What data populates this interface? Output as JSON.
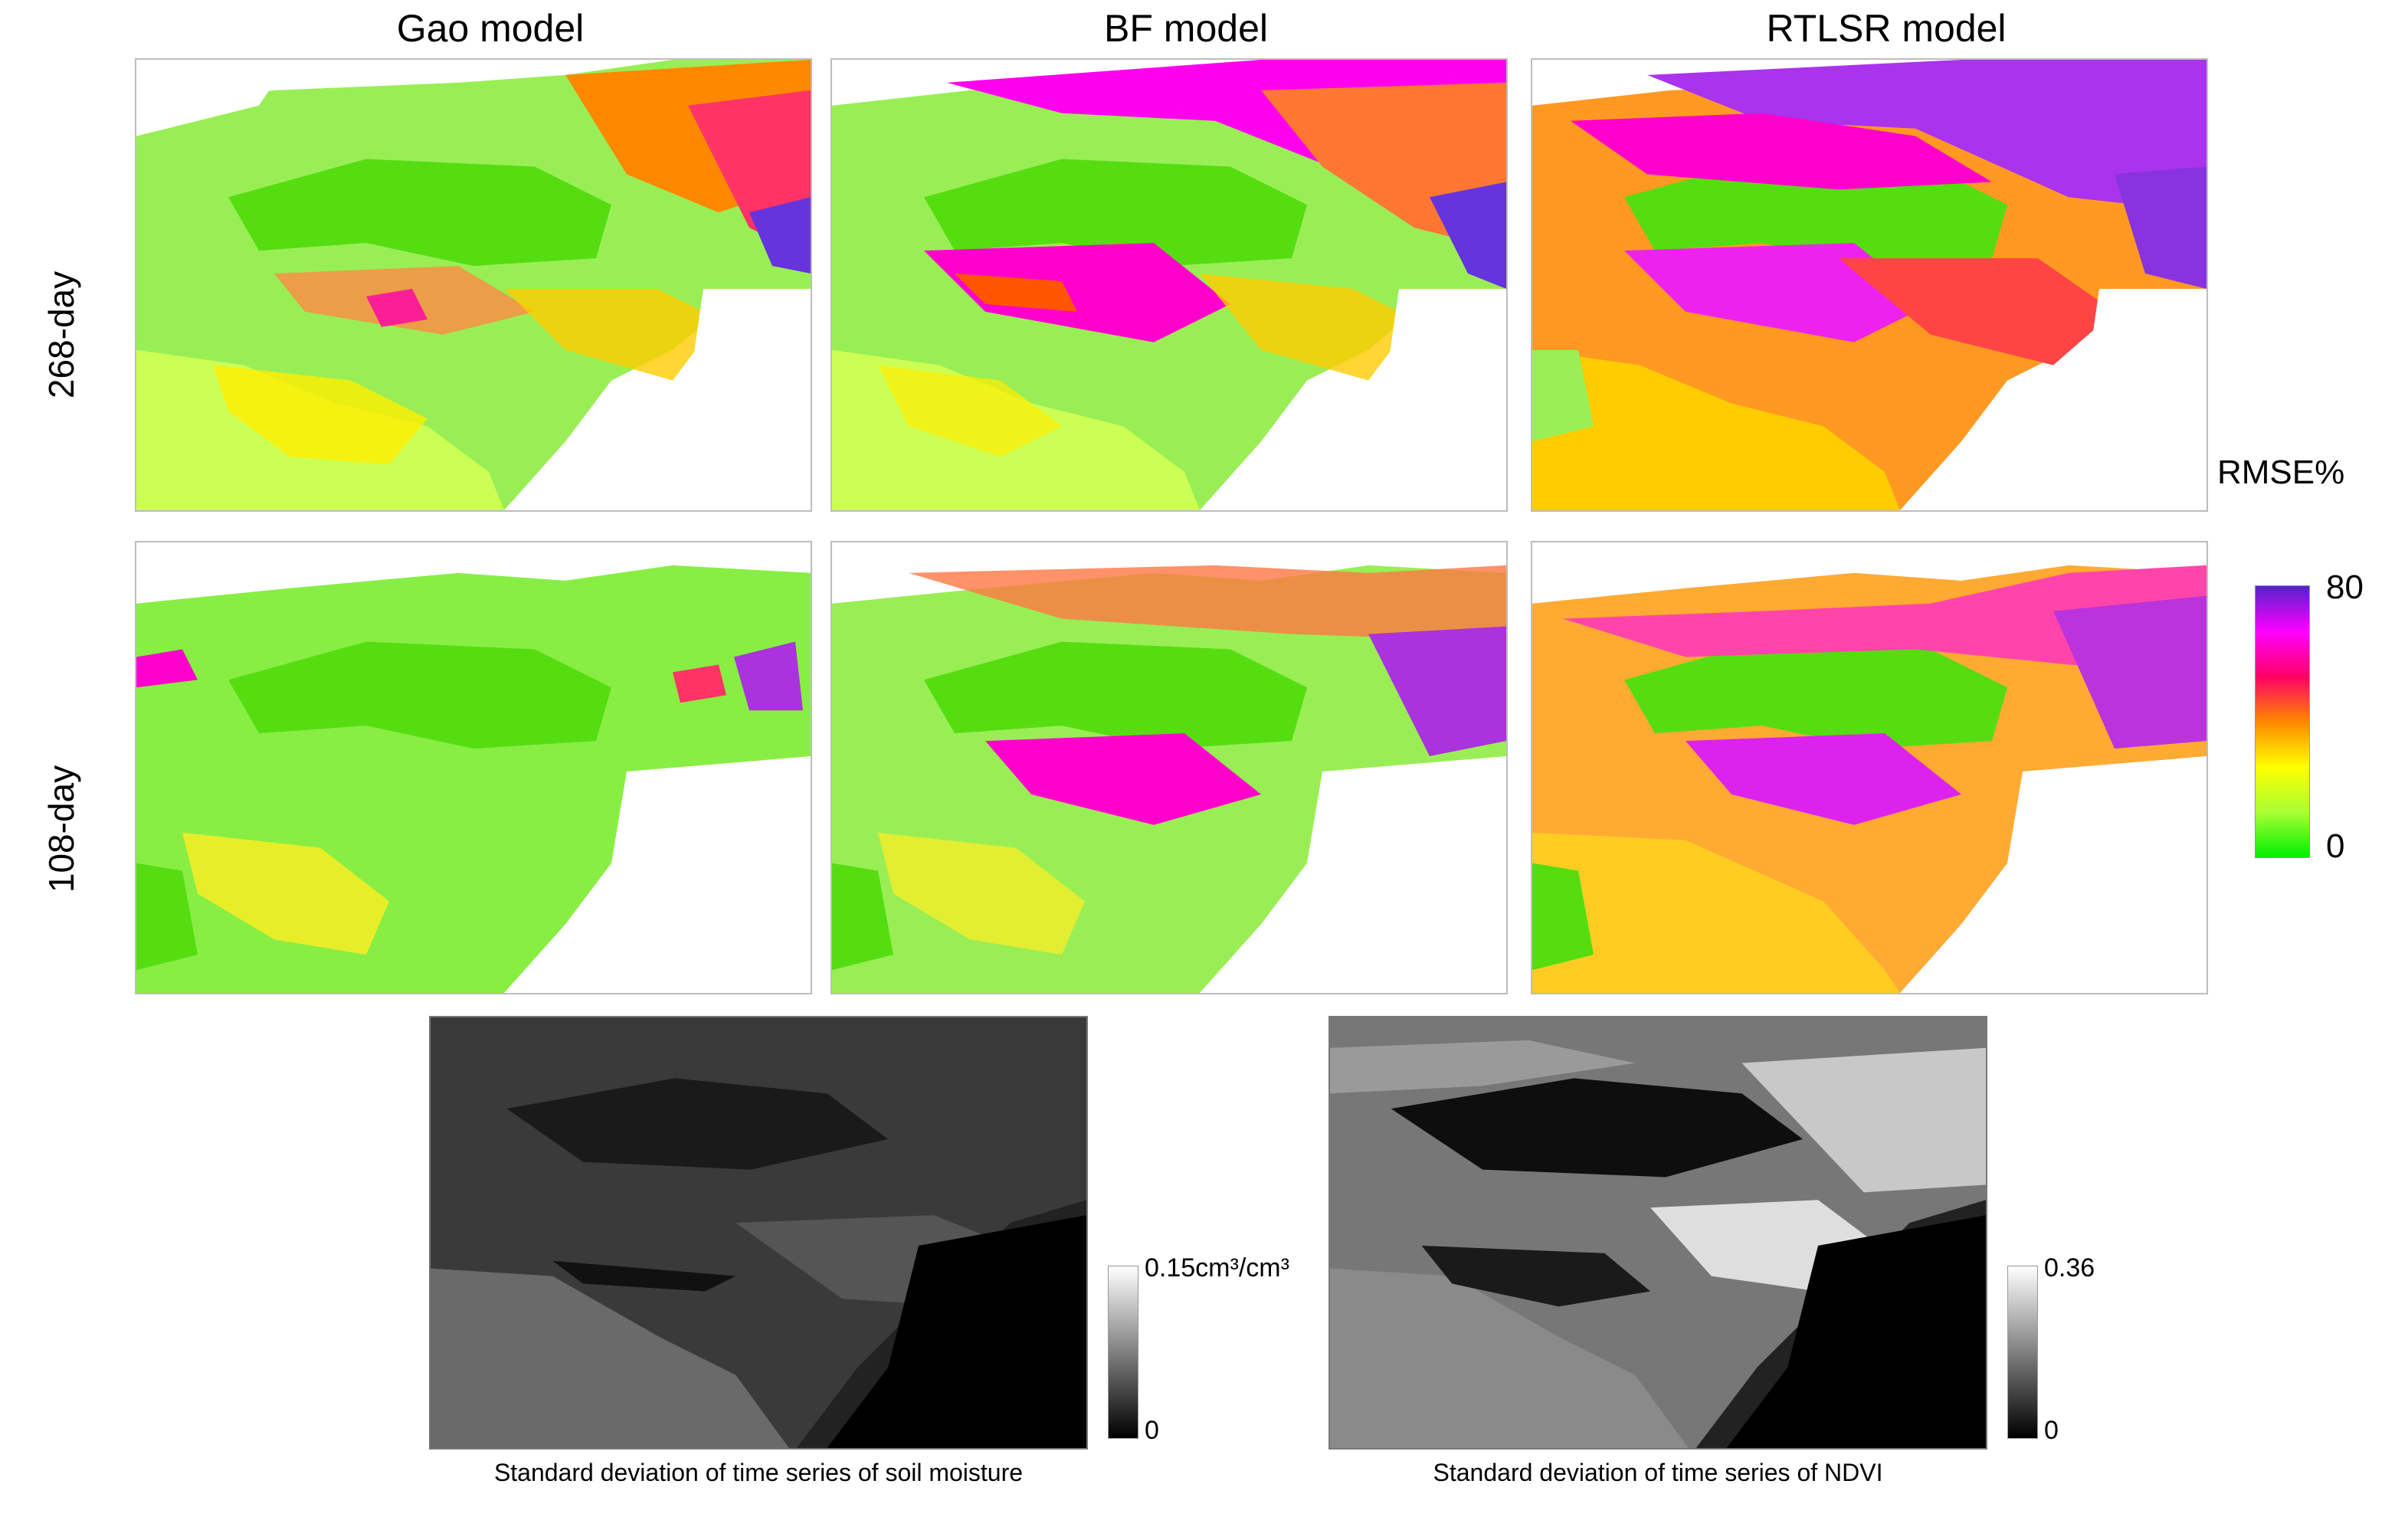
{
  "columns": {
    "gao": "Gao model",
    "bf": "BF model",
    "rtlsr": "RTLSR model"
  },
  "rows": {
    "day268": "268-day",
    "day108": "108-day"
  },
  "legend": {
    "title": "RMSE%",
    "max": "80",
    "min": "0",
    "colors": [
      "#00ee00",
      "#aaff33",
      "#ffff00",
      "#ff8800",
      "#ff0066",
      "#ff00ff",
      "#5522cc"
    ]
  },
  "bottom": {
    "soil": {
      "max": "0.15cm³/cm³",
      "min": "0",
      "caption": "Standard deviation of time series of soil moisture"
    },
    "ndvi": {
      "max": "0.36",
      "min": "0",
      "caption": "Standard deviation of time series of NDVI"
    }
  }
}
